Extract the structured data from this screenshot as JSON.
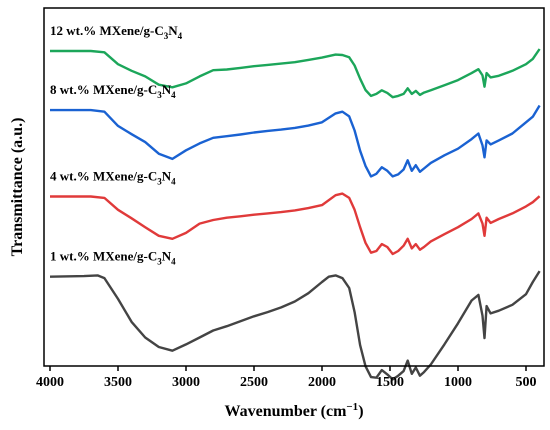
{
  "chart_data": {
    "type": "line",
    "xlabel_main": "Wavenumber (cm",
    "xlabel_sup": "−1",
    "xlabel_end": ")",
    "ylabel": "Transmittance (a.u.)",
    "xlim": [
      4000,
      400
    ],
    "x_reversed": true,
    "xticks": [
      4000,
      3500,
      3000,
      2500,
      2000,
      1500,
      1000,
      500
    ],
    "y_ticks_shown": false,
    "grid": false,
    "series": [
      {
        "name_parts": [
          "12 wt.% MXene/g-C",
          "3",
          "N",
          "4"
        ],
        "color": "#1ca65a",
        "points": [
          [
            4000,
            0.906
          ],
          [
            3700,
            0.906
          ],
          [
            3600,
            0.902
          ],
          [
            3500,
            0.866
          ],
          [
            3400,
            0.846
          ],
          [
            3300,
            0.829
          ],
          [
            3200,
            0.804
          ],
          [
            3100,
            0.796
          ],
          [
            3000,
            0.808
          ],
          [
            2900,
            0.829
          ],
          [
            2800,
            0.848
          ],
          [
            2700,
            0.85
          ],
          [
            2600,
            0.855
          ],
          [
            2500,
            0.86
          ],
          [
            2400,
            0.864
          ],
          [
            2300,
            0.868
          ],
          [
            2200,
            0.872
          ],
          [
            2100,
            0.879
          ],
          [
            2000,
            0.886
          ],
          [
            1900,
            0.895
          ],
          [
            1850,
            0.894
          ],
          [
            1800,
            0.887
          ],
          [
            1760,
            0.862
          ],
          [
            1720,
            0.822
          ],
          [
            1680,
            0.788
          ],
          [
            1640,
            0.77
          ],
          [
            1600,
            0.776
          ],
          [
            1560,
            0.787
          ],
          [
            1520,
            0.779
          ],
          [
            1480,
            0.766
          ],
          [
            1440,
            0.77
          ],
          [
            1400,
            0.776
          ],
          [
            1370,
            0.793
          ],
          [
            1340,
            0.776
          ],
          [
            1310,
            0.785
          ],
          [
            1280,
            0.773
          ],
          [
            1250,
            0.78
          ],
          [
            1200,
            0.787
          ],
          [
            1100,
            0.802
          ],
          [
            1000,
            0.818
          ],
          [
            900,
            0.839
          ],
          [
            850,
            0.851
          ],
          [
            820,
            0.832
          ],
          [
            805,
            0.798
          ],
          [
            790,
            0.839
          ],
          [
            760,
            0.826
          ],
          [
            700,
            0.831
          ],
          [
            600,
            0.846
          ],
          [
            500,
            0.866
          ],
          [
            450,
            0.882
          ],
          [
            400,
            0.912
          ]
        ]
      },
      {
        "name_parts": [
          "8 wt.% MXene/g-C",
          "3",
          "N",
          "4"
        ],
        "color": "#1a62d2",
        "points": [
          [
            4000,
            0.727
          ],
          [
            3700,
            0.727
          ],
          [
            3600,
            0.722
          ],
          [
            3500,
            0.679
          ],
          [
            3400,
            0.654
          ],
          [
            3300,
            0.63
          ],
          [
            3200,
            0.595
          ],
          [
            3100,
            0.579
          ],
          [
            3000,
            0.605
          ],
          [
            2900,
            0.626
          ],
          [
            2800,
            0.643
          ],
          [
            2700,
            0.648
          ],
          [
            2600,
            0.653
          ],
          [
            2500,
            0.659
          ],
          [
            2400,
            0.664
          ],
          [
            2300,
            0.668
          ],
          [
            2200,
            0.673
          ],
          [
            2100,
            0.68
          ],
          [
            2000,
            0.69
          ],
          [
            1900,
            0.717
          ],
          [
            1850,
            0.722
          ],
          [
            1800,
            0.708
          ],
          [
            1760,
            0.665
          ],
          [
            1720,
            0.604
          ],
          [
            1680,
            0.558
          ],
          [
            1640,
            0.526
          ],
          [
            1600,
            0.534
          ],
          [
            1560,
            0.554
          ],
          [
            1520,
            0.543
          ],
          [
            1480,
            0.526
          ],
          [
            1440,
            0.532
          ],
          [
            1400,
            0.547
          ],
          [
            1370,
            0.575
          ],
          [
            1340,
            0.543
          ],
          [
            1310,
            0.56
          ],
          [
            1280,
            0.54
          ],
          [
            1250,
            0.55
          ],
          [
            1200,
            0.567
          ],
          [
            1100,
            0.59
          ],
          [
            1000,
            0.61
          ],
          [
            900,
            0.639
          ],
          [
            850,
            0.656
          ],
          [
            820,
            0.62
          ],
          [
            805,
            0.584
          ],
          [
            790,
            0.635
          ],
          [
            760,
            0.623
          ],
          [
            700,
            0.635
          ],
          [
            600,
            0.656
          ],
          [
            500,
            0.69
          ],
          [
            450,
            0.707
          ],
          [
            400,
            0.741
          ]
        ]
      },
      {
        "name_parts": [
          "4 wt.% MXene/g-C",
          "3",
          "N",
          "4"
        ],
        "color": "#e03a3a",
        "points": [
          [
            4000,
            0.465
          ],
          [
            3700,
            0.465
          ],
          [
            3600,
            0.461
          ],
          [
            3500,
            0.425
          ],
          [
            3400,
            0.399
          ],
          [
            3300,
            0.372
          ],
          [
            3200,
            0.346
          ],
          [
            3100,
            0.337
          ],
          [
            3000,
            0.355
          ],
          [
            2900,
            0.383
          ],
          [
            2800,
            0.394
          ],
          [
            2700,
            0.401
          ],
          [
            2600,
            0.405
          ],
          [
            2500,
            0.41
          ],
          [
            2400,
            0.414
          ],
          [
            2300,
            0.418
          ],
          [
            2200,
            0.423
          ],
          [
            2100,
            0.43
          ],
          [
            2000,
            0.439
          ],
          [
            1900,
            0.469
          ],
          [
            1850,
            0.474
          ],
          [
            1800,
            0.461
          ],
          [
            1760,
            0.425
          ],
          [
            1720,
            0.372
          ],
          [
            1680,
            0.325
          ],
          [
            1640,
            0.295
          ],
          [
            1600,
            0.3
          ],
          [
            1560,
            0.321
          ],
          [
            1520,
            0.312
          ],
          [
            1480,
            0.291
          ],
          [
            1440,
            0.3
          ],
          [
            1400,
            0.316
          ],
          [
            1370,
            0.337
          ],
          [
            1340,
            0.308
          ],
          [
            1310,
            0.321
          ],
          [
            1280,
            0.304
          ],
          [
            1250,
            0.312
          ],
          [
            1200,
            0.329
          ],
          [
            1100,
            0.351
          ],
          [
            1000,
            0.372
          ],
          [
            900,
            0.397
          ],
          [
            850,
            0.414
          ],
          [
            820,
            0.383
          ],
          [
            805,
            0.346
          ],
          [
            790,
            0.401
          ],
          [
            760,
            0.385
          ],
          [
            700,
            0.397
          ],
          [
            600,
            0.414
          ],
          [
            500,
            0.435
          ],
          [
            450,
            0.448
          ],
          [
            400,
            0.466
          ]
        ]
      },
      {
        "name_parts": [
          "1 wt.% MXene/g-C",
          "3",
          "N",
          "4"
        ],
        "color": "#444444",
        "points": [
          [
            4000,
            0.222
          ],
          [
            3750,
            0.224
          ],
          [
            3650,
            0.226
          ],
          [
            3600,
            0.218
          ],
          [
            3500,
            0.155
          ],
          [
            3400,
            0.085
          ],
          [
            3300,
            0.038
          ],
          [
            3200,
            0.009
          ],
          [
            3100,
            -0.002
          ],
          [
            3000,
            0.017
          ],
          [
            2900,
            0.038
          ],
          [
            2800,
            0.059
          ],
          [
            2700,
            0.072
          ],
          [
            2600,
            0.087
          ],
          [
            2500,
            0.102
          ],
          [
            2400,
            0.115
          ],
          [
            2300,
            0.129
          ],
          [
            2200,
            0.147
          ],
          [
            2100,
            0.172
          ],
          [
            2000,
            0.206
          ],
          [
            1950,
            0.222
          ],
          [
            1900,
            0.226
          ],
          [
            1850,
            0.218
          ],
          [
            1800,
            0.188
          ],
          [
            1760,
            0.115
          ],
          [
            1720,
            0.015
          ],
          [
            1680,
            -0.049
          ],
          [
            1640,
            -0.082
          ],
          [
            1600,
            -0.084
          ],
          [
            1560,
            -0.061
          ],
          [
            1520,
            -0.074
          ],
          [
            1480,
            -0.089
          ],
          [
            1440,
            -0.078
          ],
          [
            1400,
            -0.064
          ],
          [
            1370,
            -0.032
          ],
          [
            1340,
            -0.072
          ],
          [
            1310,
            -0.053
          ],
          [
            1280,
            -0.078
          ],
          [
            1250,
            -0.067
          ],
          [
            1200,
            -0.044
          ],
          [
            1100,
            0.017
          ],
          [
            1000,
            0.081
          ],
          [
            900,
            0.15
          ],
          [
            850,
            0.167
          ],
          [
            820,
            0.104
          ],
          [
            805,
            0.036
          ],
          [
            790,
            0.133
          ],
          [
            760,
            0.111
          ],
          [
            700,
            0.119
          ],
          [
            600,
            0.137
          ],
          [
            500,
            0.169
          ],
          [
            450,
            0.206
          ],
          [
            400,
            0.239
          ]
        ]
      }
    ]
  }
}
